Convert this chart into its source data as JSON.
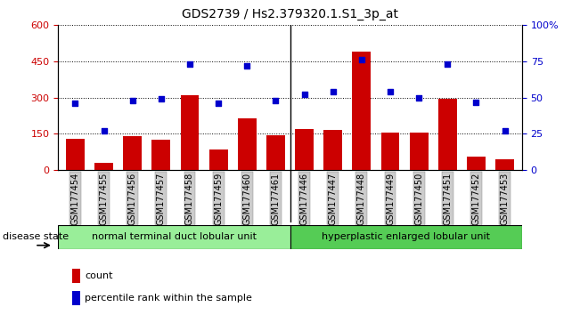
{
  "title": "GDS2739 / Hs2.379320.1.S1_3p_at",
  "samples": [
    "GSM177454",
    "GSM177455",
    "GSM177456",
    "GSM177457",
    "GSM177458",
    "GSM177459",
    "GSM177460",
    "GSM177461",
    "GSM177446",
    "GSM177447",
    "GSM177448",
    "GSM177449",
    "GSM177450",
    "GSM177451",
    "GSM177452",
    "GSM177453"
  ],
  "counts": [
    130,
    30,
    140,
    125,
    310,
    85,
    215,
    145,
    170,
    165,
    490,
    155,
    155,
    295,
    55,
    45
  ],
  "percentiles": [
    46,
    27,
    48,
    49,
    73,
    46,
    72,
    48,
    52,
    54,
    76,
    54,
    50,
    73,
    47,
    27
  ],
  "group1_label": "normal terminal duct lobular unit",
  "group2_label": "hyperplastic enlarged lobular unit",
  "group1_count": 8,
  "group2_count": 8,
  "ylim_left": [
    0,
    600
  ],
  "ylim_right": [
    0,
    100
  ],
  "yticks_left": [
    0,
    150,
    300,
    450,
    600
  ],
  "yticks_right": [
    0,
    25,
    50,
    75,
    100
  ],
  "bar_color": "#cc0000",
  "dot_color": "#0000cc",
  "group1_color": "#99ee99",
  "group2_color": "#55cc55",
  "tick_bg_color": "#cccccc",
  "legend_count_color": "#cc0000",
  "legend_pct_color": "#0000cc",
  "title_fontsize": 10,
  "tick_fontsize": 7,
  "label_fontsize": 8
}
